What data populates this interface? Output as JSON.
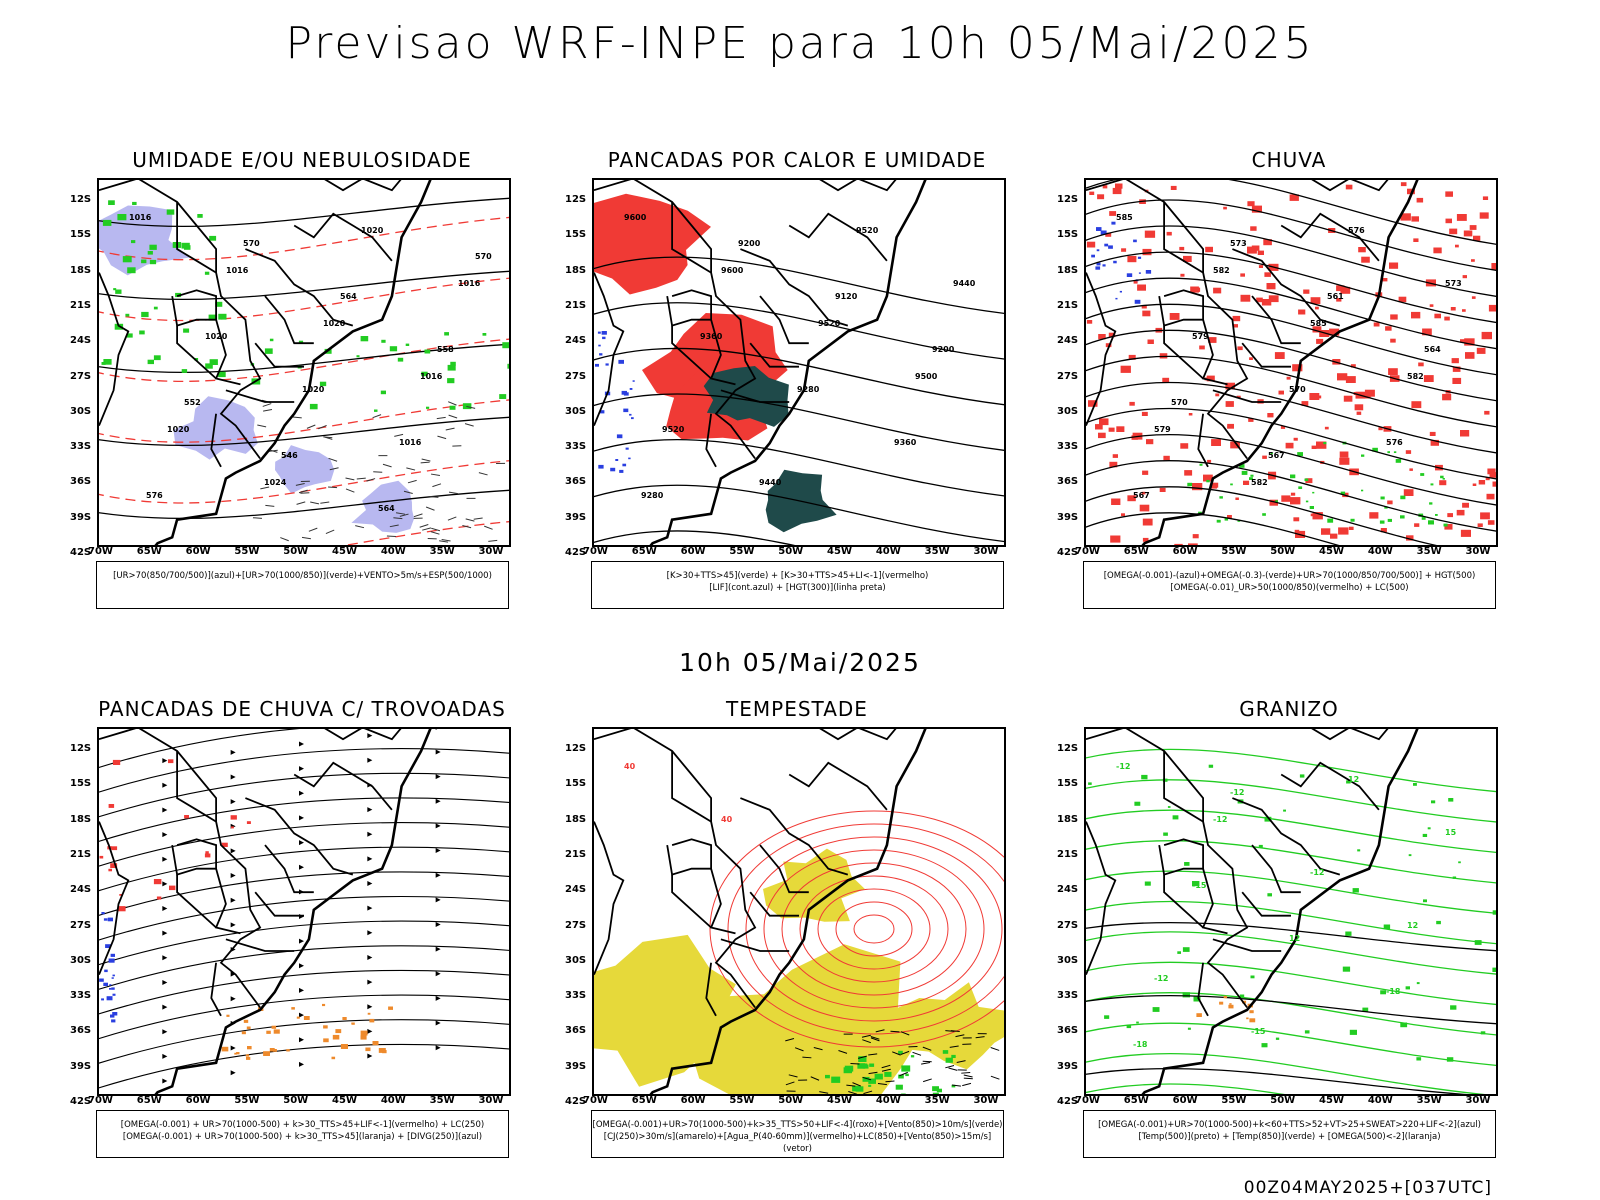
{
  "title": "Previsao WRF-INPE  para 10h 05/Mai/2025",
  "mid_title": "10h 05/Mai/2025",
  "footer": "00Z04MAY2025+[037UTC]",
  "axes": {
    "lat_labels": [
      "12S",
      "15S",
      "18S",
      "21S",
      "24S",
      "27S",
      "30S",
      "33S",
      "36S",
      "39S",
      "42S"
    ],
    "lon_labels": [
      "70W",
      "65W",
      "60W",
      "55W",
      "50W",
      "45W",
      "40W",
      "35W",
      "30W"
    ]
  },
  "colors": {
    "blue": "#2a3fe0",
    "green": "#22cc22",
    "red": "#f03a35",
    "lavender": "#b8b8f0",
    "darkteal": "#1f4a4a",
    "yellow": "#e6d93a",
    "orange": "#ee8a2c"
  },
  "chart_data": [
    {
      "type": "contour-map",
      "title": "UMIDADE E/OU NEBULOSIDADE",
      "legend_lines": [
        "[UR>70(850/700/500)](azul)+[UR>70(1000/850)](verde)+VENTO>5m/s+ESP(500/1000)"
      ],
      "xlim": [
        -70,
        -28
      ],
      "ylim": [
        -42,
        -10
      ],
      "contour_labels": [
        "1016",
        "1016",
        "1020",
        "1016",
        "1020",
        "1024",
        "1020",
        "1016",
        "1020",
        "1020",
        "1016",
        "576",
        "570",
        "564",
        "558",
        "552",
        "546",
        "564",
        "570"
      ]
    },
    {
      "type": "contour-map",
      "title": "PANCADAS POR CALOR E UMIDADE",
      "legend_lines": [
        "[K>30+TTS>45](verde) + [K>30+TTS>45+LI<-1](vermelho)",
        "[LIF](cont.azul) + [HGT(300)](linha preta)"
      ],
      "xlim": [
        -70,
        -28
      ],
      "ylim": [
        -42,
        -10
      ],
      "contour_labels": [
        "9600",
        "9600",
        "9520",
        "9500",
        "9520",
        "9440",
        "9520",
        "9440",
        "9360",
        "9280",
        "9360",
        "9280",
        "9200",
        "9120",
        "9200"
      ]
    },
    {
      "type": "contour-map",
      "title": "CHUVA",
      "legend_lines": [
        "[OMEGA(-0.001)-(azul)+OMEGA(-0.3)-(verde)+UR>70(1000/850/700/500)] + HGT(500)",
        "[OMEGA(-0.01)_UR>50(1000/850)(vermelho) + LC(500)"
      ],
      "xlim": [
        -70,
        -28
      ],
      "ylim": [
        -42,
        -10
      ],
      "contour_labels": [
        "585",
        "582",
        "585",
        "582",
        "579",
        "582",
        "576",
        "573",
        "579",
        "570",
        "576",
        "567",
        "573",
        "561",
        "564",
        "570",
        "567"
      ]
    },
    {
      "type": "contour-map",
      "title": "PANCADAS DE CHUVA C/ TROVOADAS",
      "legend_lines": [
        "[OMEGA(-0.001) + UR>70(1000-500) + k>30_TTS>45+LIF<-1](vermelho) + LC(250)",
        "[OMEGA(-0.001) + UR>70(1000-500) + k>30_TTS>45](laranja) + [DIVG(250)](azul)"
      ],
      "xlim": [
        -70,
        -28
      ],
      "ylim": [
        -42,
        -10
      ],
      "contour_labels": []
    },
    {
      "type": "contour-map",
      "title": "TEMPESTADE",
      "legend_lines": [
        "[OMEGA(-0.001)+UR>70(1000-500)+k>35_TTS>50+LIF<-4](roxo)+[Vento(850)>10m/s](verde)",
        "[CJ(250)>30m/s](amarelo)+[Agua_P(40-60mm)](vermelho)+LC(850)+[Vento(850)>15m/s](vetor)"
      ],
      "xlim": [
        -70,
        -28
      ],
      "ylim": [
        -42,
        -10
      ],
      "contour_labels": [
        "40",
        "40"
      ]
    },
    {
      "type": "contour-map",
      "title": "GRANIZO",
      "legend_lines": [
        "[OMEGA(-0.001)+UR>70(1000-500)+k<60+TTS>52+VT>25+SWEAT>220+LIF<-2](azul)",
        "[Temp(500)](preto) + [Temp(850)](verde) + [OMEGA(500)<-2](laranja)"
      ],
      "xlim": [
        -70,
        -28
      ],
      "ylim": [
        -42,
        -10
      ],
      "contour_labels": [
        "-12",
        "-12",
        "-12",
        "12",
        "-12",
        "-15",
        "12",
        "15",
        "-15",
        "12",
        "-18",
        "-18",
        "-12"
      ]
    }
  ]
}
